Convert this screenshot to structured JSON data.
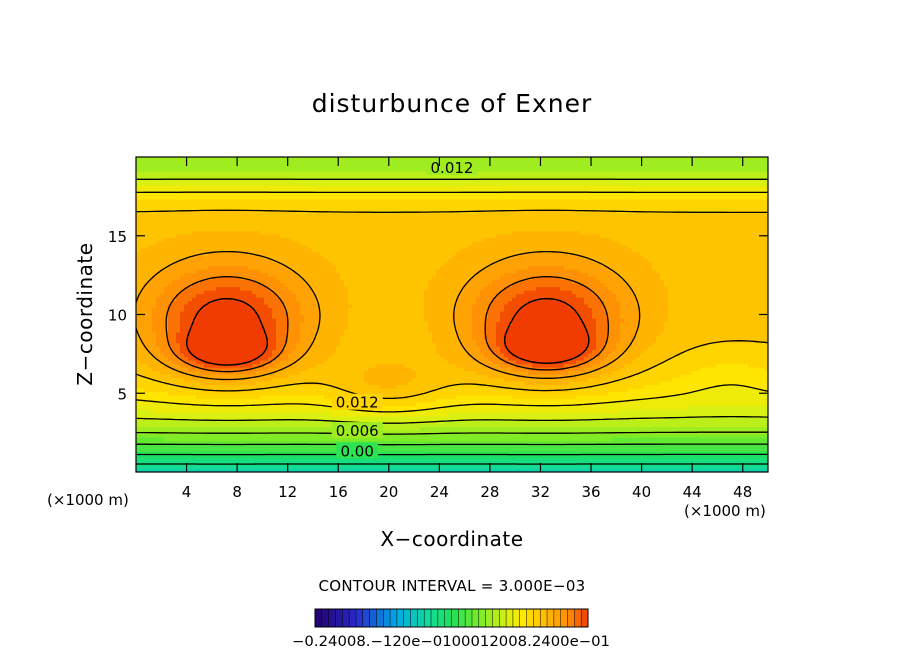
{
  "chart_data": {
    "type": "contour",
    "title": "disturbunce of Exner",
    "xlabel": "X−coordinate",
    "ylabel": "Z−coordinate",
    "x_unit_left": "(×1000 m)",
    "x_unit_right": "(×1000 m)",
    "xlim": [
      0,
      50
    ],
    "ylim": [
      0,
      20
    ],
    "xticks": [
      4,
      8,
      12,
      16,
      20,
      24,
      28,
      32,
      36,
      40,
      44,
      48
    ],
    "yticks": [
      5,
      10,
      15
    ],
    "contour_interval_text": "CONTOUR INTERVAL = 3.000E−03",
    "contour_labels": [
      {
        "text": "0.012",
        "x": 25,
        "z": 19.3
      },
      {
        "text": "0.012",
        "x": 17.5,
        "z": 4.4
      },
      {
        "text": "0.006",
        "x": 17.5,
        "z": 2.6
      },
      {
        "text": "0.00",
        "x": 17.5,
        "z": 1.3
      }
    ],
    "field_range": [
      -0.024,
      0.024
    ],
    "field_maxima": [
      {
        "x": 7.2,
        "z": 7.6,
        "value": 0.024
      },
      {
        "x": 32.5,
        "z": 7.8,
        "value": 0.024
      }
    ],
    "colorbar_labels": [
      "−0.2400e−01",
      "−0.1200e−01",
      "0.000",
      "0.1200e−01",
      "0.2400e−01"
    ],
    "colorbar_labels_overlapped_text": "−0.24008.−120e−0100012008.2400e−01"
  }
}
